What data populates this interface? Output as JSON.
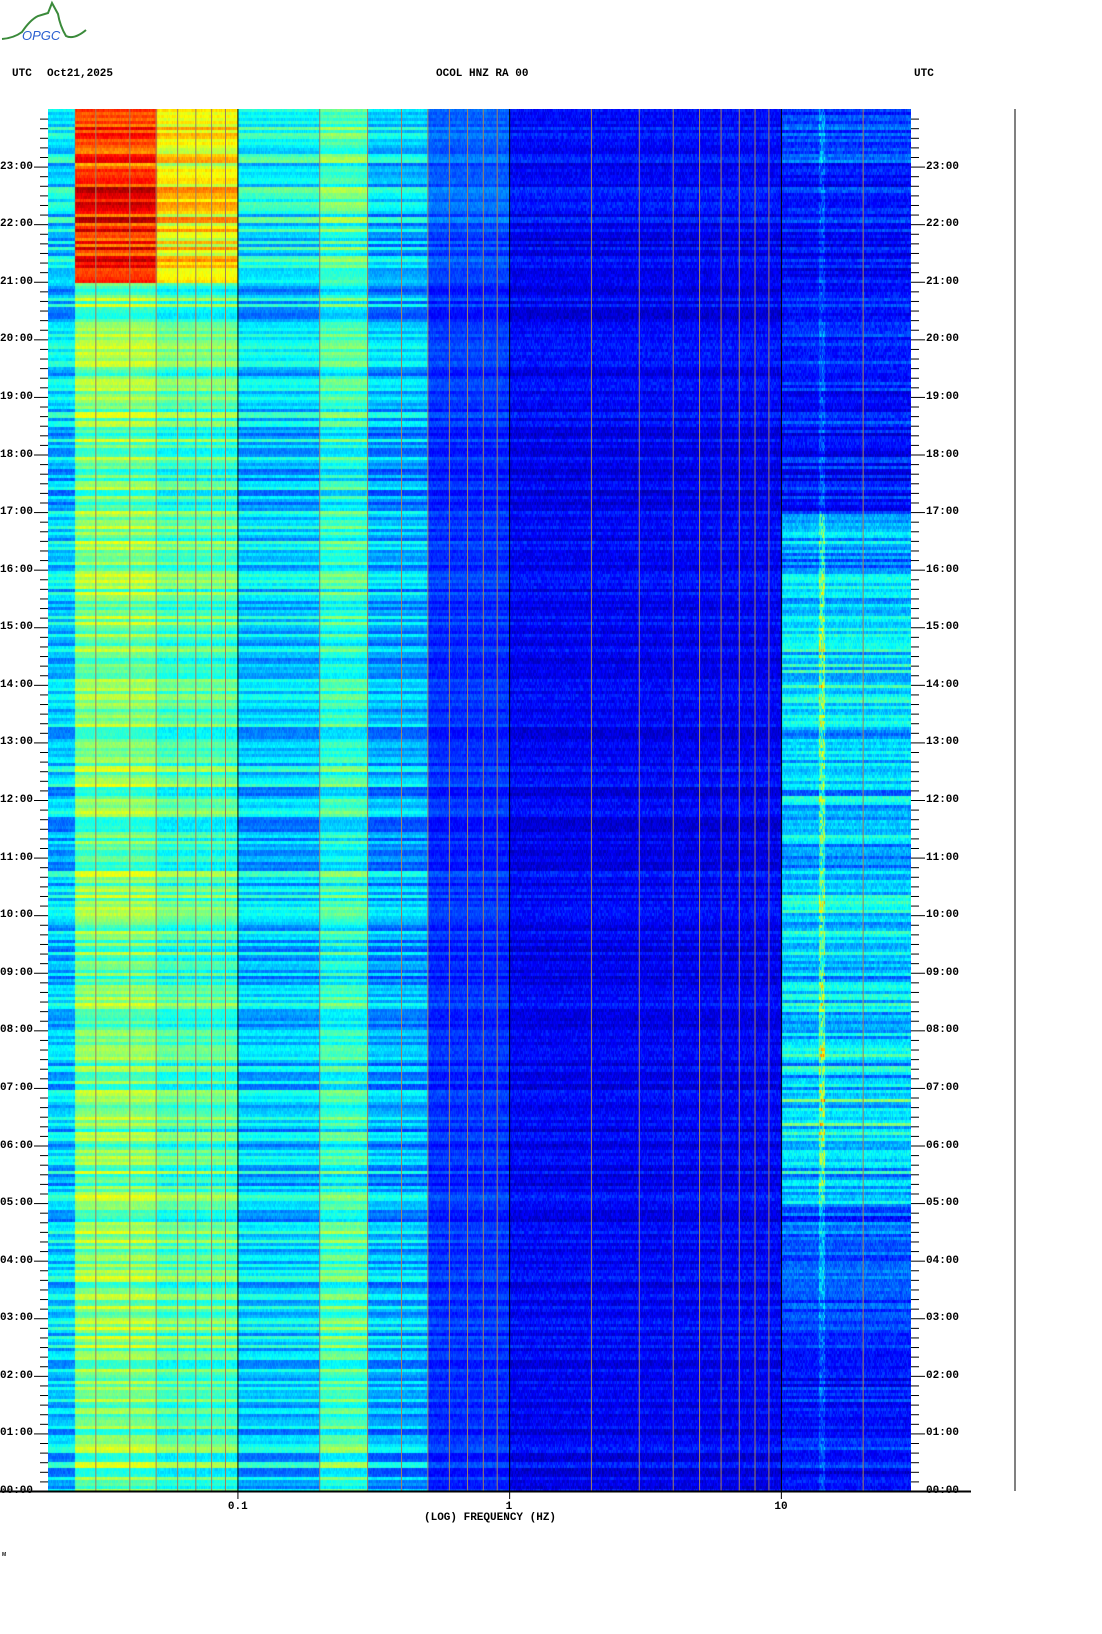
{
  "header": {
    "logo_text": "OPGC",
    "left_zone": "UTC",
    "date": "Oct21,2025",
    "station": "OCOL HNZ RA 00",
    "right_zone": "UTC"
  },
  "footer_mark": "ᴍ",
  "colors": {
    "grid_minor": "#a08060",
    "grid_major": "#000000",
    "logo_green": "#3a8a3a",
    "logo_blue": "#2a5fd0"
  },
  "chart_data": {
    "type": "heatmap",
    "title": "OCOL HNZ RA 00",
    "xlabel": "(LOG) FREQUENCY (HZ)",
    "ylabel": "",
    "x_scale": "log",
    "xlim": [
      0.02,
      30
    ],
    "x_tick_labels": [
      {
        "value": 0.1,
        "label": "0.1"
      },
      {
        "value": 1,
        "label": "1"
      },
      {
        "value": 10,
        "label": "10"
      }
    ],
    "ylim_hours": [
      0,
      24
    ],
    "y_tick_labels": [
      "00:00",
      "01:00",
      "02:00",
      "03:00",
      "04:00",
      "05:00",
      "06:00",
      "07:00",
      "08:00",
      "09:00",
      "10:00",
      "11:00",
      "12:00",
      "13:00",
      "14:00",
      "15:00",
      "16:00",
      "17:00",
      "18:00",
      "19:00",
      "20:00",
      "21:00",
      "22:00",
      "23:00"
    ],
    "y_minor_tick_minutes": 10,
    "colormap": "jet",
    "frequency_band_edges_hz": [
      0.02,
      0.025,
      0.05,
      0.1,
      0.2,
      0.3,
      0.5,
      1,
      10,
      30
    ],
    "relative_power_by_hour": [
      [
        0.33,
        0.5,
        0.45,
        0.33,
        0.45,
        0.3,
        0.17,
        0.12,
        0.14
      ],
      [
        0.33,
        0.5,
        0.45,
        0.33,
        0.45,
        0.3,
        0.17,
        0.12,
        0.15
      ],
      [
        0.33,
        0.5,
        0.45,
        0.33,
        0.45,
        0.3,
        0.17,
        0.12,
        0.16
      ],
      [
        0.33,
        0.5,
        0.45,
        0.33,
        0.44,
        0.3,
        0.17,
        0.12,
        0.2
      ],
      [
        0.33,
        0.5,
        0.45,
        0.33,
        0.45,
        0.3,
        0.17,
        0.12,
        0.22
      ],
      [
        0.33,
        0.5,
        0.45,
        0.33,
        0.42,
        0.3,
        0.17,
        0.12,
        0.32
      ],
      [
        0.33,
        0.5,
        0.45,
        0.33,
        0.42,
        0.3,
        0.17,
        0.12,
        0.38
      ],
      [
        0.33,
        0.5,
        0.45,
        0.33,
        0.42,
        0.3,
        0.17,
        0.12,
        0.36
      ],
      [
        0.33,
        0.5,
        0.45,
        0.33,
        0.42,
        0.3,
        0.17,
        0.12,
        0.34
      ],
      [
        0.33,
        0.5,
        0.45,
        0.33,
        0.42,
        0.3,
        0.17,
        0.12,
        0.32
      ],
      [
        0.33,
        0.5,
        0.45,
        0.33,
        0.42,
        0.3,
        0.17,
        0.12,
        0.33
      ],
      [
        0.33,
        0.5,
        0.45,
        0.33,
        0.42,
        0.3,
        0.17,
        0.12,
        0.33
      ],
      [
        0.33,
        0.5,
        0.45,
        0.33,
        0.42,
        0.3,
        0.17,
        0.12,
        0.34
      ],
      [
        0.33,
        0.5,
        0.45,
        0.33,
        0.42,
        0.3,
        0.17,
        0.12,
        0.36
      ],
      [
        0.33,
        0.5,
        0.45,
        0.33,
        0.42,
        0.3,
        0.17,
        0.12,
        0.36
      ],
      [
        0.33,
        0.5,
        0.45,
        0.33,
        0.42,
        0.3,
        0.17,
        0.12,
        0.33
      ],
      [
        0.33,
        0.5,
        0.45,
        0.33,
        0.42,
        0.3,
        0.17,
        0.12,
        0.28
      ],
      [
        0.33,
        0.5,
        0.45,
        0.33,
        0.42,
        0.3,
        0.17,
        0.12,
        0.16
      ],
      [
        0.33,
        0.5,
        0.45,
        0.33,
        0.42,
        0.3,
        0.17,
        0.12,
        0.15
      ],
      [
        0.33,
        0.5,
        0.45,
        0.33,
        0.42,
        0.3,
        0.17,
        0.12,
        0.14
      ],
      [
        0.33,
        0.5,
        0.45,
        0.33,
        0.42,
        0.3,
        0.17,
        0.12,
        0.14
      ],
      [
        0.35,
        0.85,
        0.65,
        0.38,
        0.45,
        0.32,
        0.2,
        0.12,
        0.14
      ],
      [
        0.35,
        0.85,
        0.65,
        0.38,
        0.45,
        0.32,
        0.22,
        0.13,
        0.14
      ],
      [
        0.35,
        0.8,
        0.62,
        0.38,
        0.45,
        0.33,
        0.22,
        0.13,
        0.2
      ]
    ],
    "persistent_line_hz": 14
  }
}
